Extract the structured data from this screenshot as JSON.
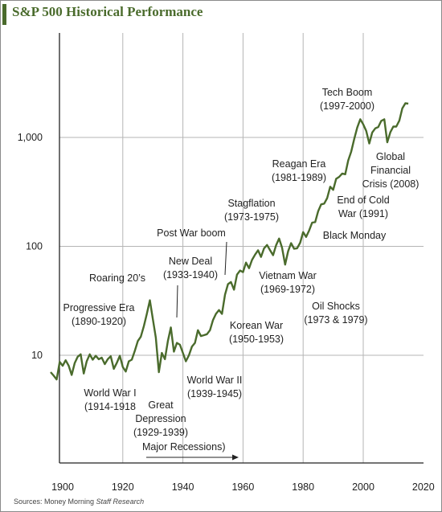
{
  "title": "S&P 500 Historical Performance",
  "source": {
    "prefix": "Sources: Money Morning ",
    "emph": "Staff Research"
  },
  "colors": {
    "line": "#4a6b2c",
    "grid": "#b5b5b5",
    "axis": "#222222",
    "title": "#4a6b2c"
  },
  "chart_data": {
    "type": "line",
    "title": "S&P 500 Historical Performance",
    "xlabel": "",
    "ylabel": "",
    "xlim": [
      1895,
      2022
    ],
    "ylim": [
      2.3,
      7000
    ],
    "yscale": "log",
    "grid": true,
    "x_ticks": [
      1900,
      1920,
      1940,
      1960,
      1980,
      2000,
      2020
    ],
    "y_ticks": [
      {
        "value": 10,
        "label": "10"
      },
      {
        "value": 100,
        "label": "100"
      },
      {
        "value": 1000,
        "label": "1,000"
      }
    ],
    "series": [
      {
        "name": "",
        "x": [
          1896,
          1897,
          1898,
          1899,
          1900,
          1901,
          1902,
          1903,
          1904,
          1905,
          1906,
          1907,
          1908,
          1909,
          1910,
          1911,
          1912,
          1913,
          1914,
          1915,
          1916,
          1917,
          1918,
          1919,
          1920,
          1921,
          1922,
          1923,
          1924,
          1925,
          1926,
          1927,
          1928,
          1929,
          1930,
          1931,
          1932,
          1933,
          1934,
          1935,
          1936,
          1937,
          1938,
          1939,
          1940,
          1941,
          1942,
          1943,
          1944,
          1945,
          1946,
          1947,
          1948,
          1949,
          1950,
          1951,
          1952,
          1953,
          1954,
          1955,
          1956,
          1957,
          1958,
          1959,
          1960,
          1961,
          1962,
          1963,
          1964,
          1965,
          1966,
          1967,
          1968,
          1969,
          1970,
          1971,
          1972,
          1973,
          1974,
          1975,
          1976,
          1977,
          1978,
          1979,
          1980,
          1981,
          1982,
          1983,
          1984,
          1985,
          1986,
          1987,
          1988,
          1989,
          1990,
          1991,
          1992,
          1993,
          1994,
          1995,
          1996,
          1997,
          1998,
          1999,
          2000,
          2001,
          2002,
          2003,
          2004,
          2005,
          2006,
          2007,
          2008,
          2009,
          2010,
          2011,
          2012,
          2013,
          2014,
          2015
        ],
        "values": [
          7,
          6.5,
          6,
          8.7,
          8,
          9,
          8,
          6.6,
          8.5,
          9.7,
          10.2,
          6.8,
          8.8,
          10.2,
          9.1,
          9.9,
          9.2,
          9.5,
          8.3,
          9.2,
          9.8,
          7.5,
          8.5,
          9.9,
          7.8,
          7.1,
          8.8,
          9.1,
          11,
          13.5,
          14.8,
          18.5,
          24,
          32,
          21.5,
          14.5,
          7,
          10.5,
          9.2,
          13.5,
          18,
          10.8,
          13,
          12.5,
          10.5,
          8.8,
          10,
          12,
          13,
          17,
          15,
          15.3,
          15.6,
          17,
          21,
          24,
          26,
          24,
          36,
          45,
          47,
          40,
          55,
          60,
          58,
          71,
          63,
          75,
          84,
          92,
          80,
          96,
          103,
          92,
          83,
          102,
          118,
          97,
          68,
          90,
          107,
          95,
          96,
          108,
          135,
          122,
          140,
          165,
          167,
          210,
          243,
          247,
          277,
          353,
          330,
          417,
          435,
          466,
          459,
          615,
          740,
          970,
          1230,
          1469,
          1320,
          1148,
          880,
          1112,
          1212,
          1248,
          1418,
          1468,
          903,
          1115,
          1258,
          1258,
          1426,
          1848,
          2059,
          2044
        ]
      }
    ],
    "annotations": [
      {
        "lines": [
          "Tech Boom",
          "(1997-2000)"
        ]
      },
      {
        "lines": [
          "Reagan Era",
          "(1981-1989)"
        ]
      },
      {
        "lines": [
          "Global",
          "Financial",
          "Crisis (2008)"
        ]
      },
      {
        "lines": [
          "End of Cold",
          "War (1991)"
        ]
      },
      {
        "lines": [
          "Black Monday"
        ]
      },
      {
        "lines": [
          "Stagflation",
          "(1973-1975)"
        ]
      },
      {
        "lines": [
          "Post War boom"
        ]
      },
      {
        "lines": [
          "New Deal",
          "(1933-1940)"
        ]
      },
      {
        "lines": [
          "Roaring 20’s"
        ]
      },
      {
        "lines": [
          "Vietnam War",
          "(1969-1972)"
        ]
      },
      {
        "lines": [
          "Oil Shocks",
          "(1973 & 1979)"
        ]
      },
      {
        "lines": [
          "Progressive Era",
          "(1890-1920)"
        ]
      },
      {
        "lines": [
          "Korean War",
          "(1950-1953)"
        ]
      },
      {
        "lines": [
          "World War II",
          "(1939-1945)"
        ]
      },
      {
        "lines": [
          "World War I",
          "(1914-1918"
        ]
      },
      {
        "lines": [
          "Great",
          "Depression",
          "(1929-1939)"
        ]
      },
      {
        "lines": [
          "Major Recessions)"
        ]
      }
    ]
  }
}
